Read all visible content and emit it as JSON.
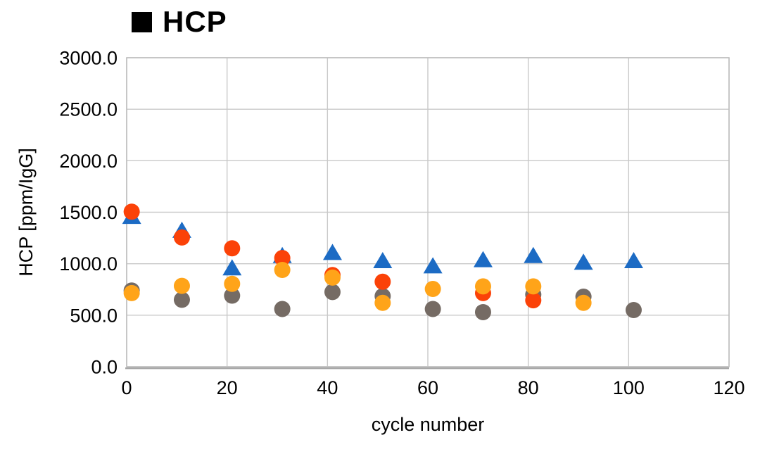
{
  "chart_data": {
    "type": "scatter",
    "title": "HCP",
    "title_marker": "black-square",
    "xlabel": "cycle number",
    "ylabel": "HCP [ppm/IgG]",
    "xlim": [
      0,
      120
    ],
    "ylim": [
      0,
      3000
    ],
    "grid": true,
    "legend_position": "none",
    "x_ticks": {
      "values": [
        0,
        20,
        40,
        60,
        80,
        100,
        120
      ],
      "labels": [
        "0",
        "20",
        "40",
        "60",
        "80",
        "100",
        "120"
      ]
    },
    "y_ticks": {
      "values": [
        0,
        500,
        1000,
        1500,
        2000,
        2500,
        3000
      ],
      "labels": [
        "0.0",
        "500.0",
        "1000.0",
        "1500.0",
        "2000.0",
        "2500.0",
        "3000.0"
      ]
    },
    "x": [
      1,
      11,
      21,
      31,
      41,
      51,
      61,
      71,
      81,
      91,
      101
    ],
    "series": [
      {
        "name": "gray-circles",
        "marker": "circle",
        "color": "#756B64",
        "values": [
          740,
          650,
          690,
          560,
          725,
          685,
          560,
          530,
          700,
          680,
          550
        ]
      },
      {
        "name": "blue-triangles",
        "marker": "triangle",
        "color": "#1C6BC4",
        "values": [
          1465,
          1330,
          965,
          1085,
          1115,
          1035,
          985,
          1045,
          1085,
          1020,
          1035
        ]
      },
      {
        "name": "red-orange-circles",
        "marker": "circle",
        "color": "#FB4208",
        "values": [
          1505,
          1255,
          1150,
          1055,
          890,
          825,
          null,
          715,
          645,
          null,
          null
        ]
      },
      {
        "name": "amber-circles",
        "marker": "circle",
        "color": "#FFA419",
        "values": [
          715,
          785,
          805,
          940,
          865,
          620,
          755,
          780,
          780,
          620,
          null
        ]
      }
    ],
    "colors": {
      "gridline": "#C9C9C9",
      "border": "#BFBFBF",
      "axis": "#A6A6A6",
      "text": "#000000"
    }
  }
}
